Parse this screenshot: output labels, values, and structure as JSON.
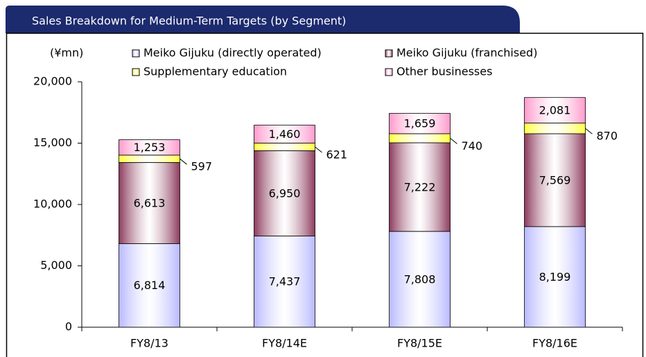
{
  "chart_data": {
    "type": "stacked_bar",
    "title": "Sales Breakdown for Medium-Term Targets (by Segment)",
    "y_label": "(¥mn)",
    "categories": [
      "FY8/13",
      "FY8/14E",
      "FY8/15E",
      "FY8/16E"
    ],
    "series": [
      {
        "name": "Meiko Gijuku (directly operated)",
        "color": "#b8b8ff",
        "values": [
          6814,
          7437,
          7808,
          8199
        ],
        "value_labels": [
          "6,814",
          "7,437",
          "7,808",
          "8,199"
        ]
      },
      {
        "name": "Meiko Gijuku (franchised)",
        "color": "#8c3a5c",
        "values": [
          6613,
          6950,
          7222,
          7569
        ],
        "value_labels": [
          "6,613",
          "6,950",
          "7,222",
          "7,569"
        ]
      },
      {
        "name": "Supplementary education",
        "color": "#ffff40",
        "values": [
          597,
          621,
          740,
          870
        ]
      },
      {
        "name": "Other businesses",
        "color": "#ff99cc",
        "values": [
          1253,
          1460,
          1659,
          2081
        ],
        "value_labels": [
          "1,253",
          "1,460",
          "1,659",
          "2,081"
        ]
      }
    ],
    "ylim": [
      0,
      20000
    ],
    "yticks": [
      0,
      {
        "value": 5000,
        "label": "5,000"
      },
      {
        "value": 10000,
        "label": "10,000"
      },
      {
        "value": 15000,
        "label": "15,000"
      },
      {
        "value": 20000,
        "label": "20,000"
      }
    ]
  }
}
